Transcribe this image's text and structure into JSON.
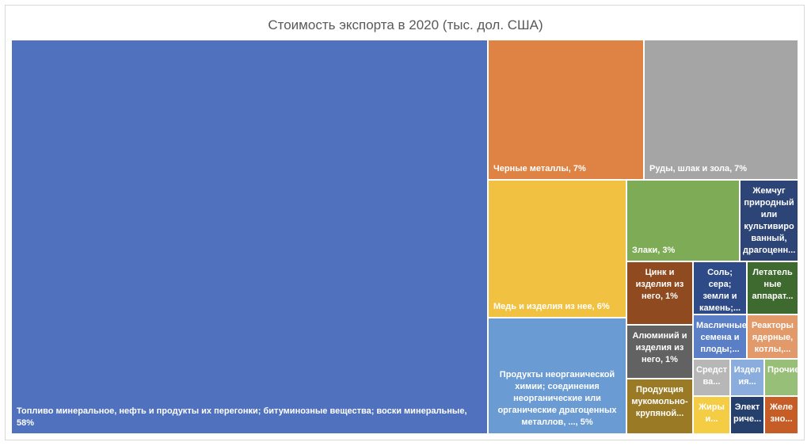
{
  "chart_data": {
    "type": "treemap",
    "title": "Стоимость экспорта в 2020 (тыс. дол. США)",
    "items": [
      {
        "label": "Топливо минеральное, нефть и продукты их перегонки; битуминозные вещества; воски минеральные, 58%",
        "share": 58,
        "color": "#4f71be"
      },
      {
        "label": "Черные металлы, 7%",
        "share": 7,
        "color": "#df8344"
      },
      {
        "label": "Руды, шлак и зола, 7%",
        "share": 7,
        "color": "#a5a5a5"
      },
      {
        "label": "Медь и изделия из нее, 6%",
        "share": 6,
        "color": "#f1c242"
      },
      {
        "label": "Продукты неорганической химии; соединения неорганические или органические драгоценных металлов, ..., 5%",
        "share": 5,
        "color": "#6b9bd3"
      },
      {
        "label": "Злаки, 3%",
        "share": 3,
        "color": "#7eab55"
      },
      {
        "label": "Жемчуг природный или культивиро ванный, драгоценн...",
        "color": "#2d4476"
      },
      {
        "label": "Цинк и изделия из него, 1%",
        "share": 1,
        "color": "#8f4a1f"
      },
      {
        "label": "Соль; сера; земли и камень;...",
        "color": "#2f4b87"
      },
      {
        "label": "Летатель ные аппарат...",
        "color": "#3f6a2f"
      },
      {
        "label": "Алюминий и изделия из него, 1%",
        "share": 1,
        "color": "#626262"
      },
      {
        "label": "Масличные семена и плоды;...",
        "color": "#5b7fc6"
      },
      {
        "label": "Реакторы ядерные, котлы,...",
        "color": "#e39a6a"
      },
      {
        "label": "Продукция мукомольно-крупяной...",
        "color": "#9b7a25"
      },
      {
        "label": "Средст ва...",
        "color": "#b7b7b7"
      },
      {
        "label": "Издел ия...",
        "color": "#8aaddd"
      },
      {
        "label": "Прочие...",
        "color": "#97bf77"
      },
      {
        "label": "Жиры и...",
        "color": "#f5cd45"
      },
      {
        "label": "Элект риче...",
        "color": "#26406e"
      },
      {
        "label": "Желе зно...",
        "color": "#c75d26"
      }
    ]
  }
}
